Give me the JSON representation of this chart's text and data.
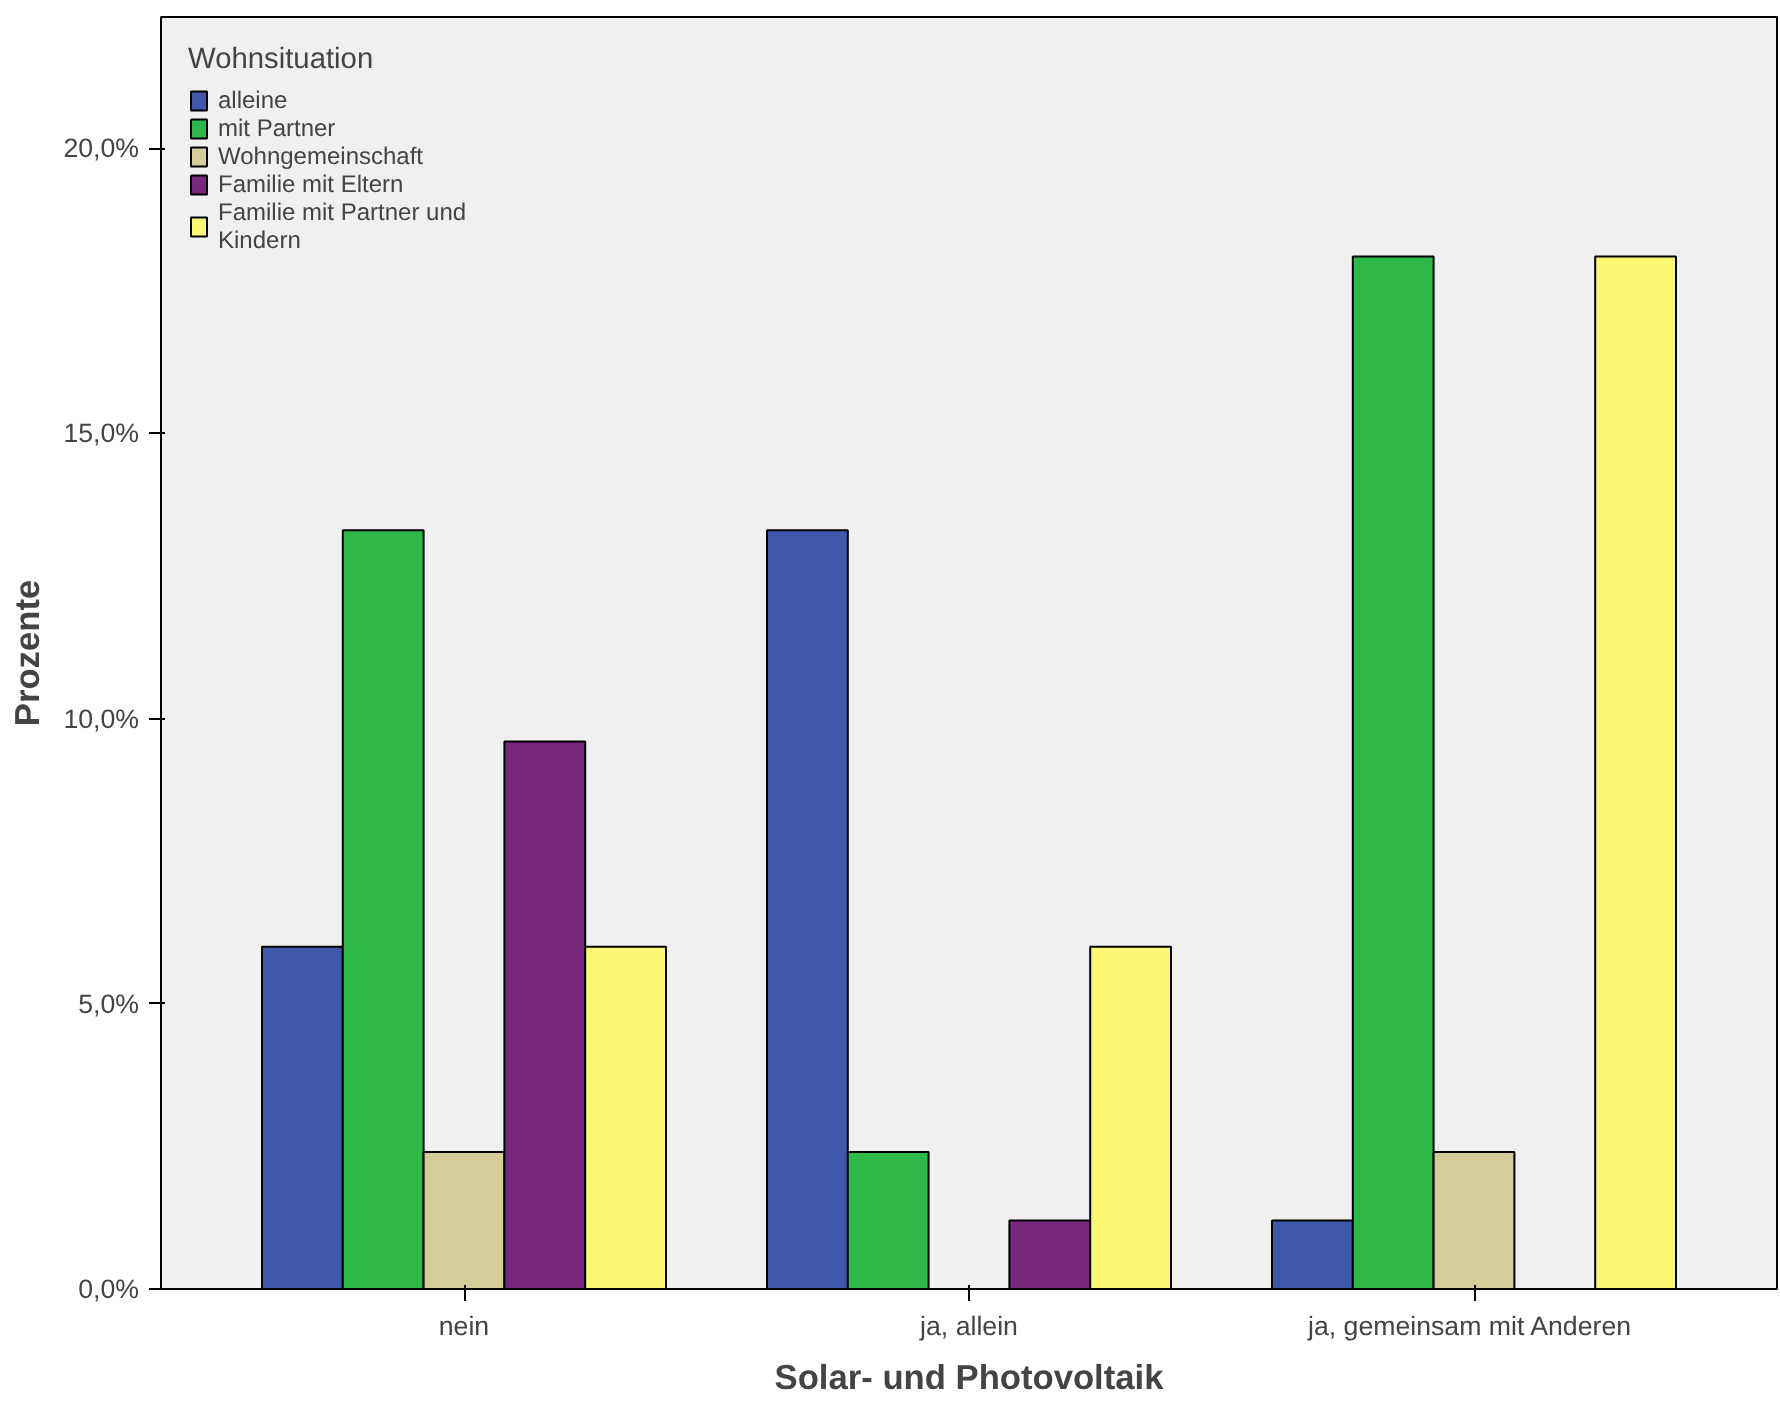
{
  "chart_data": {
    "type": "bar",
    "xlabel": "Solar- und Photovoltaik",
    "ylabel": "Prozente",
    "legend_title": "Wohnsituation",
    "legend": "top left",
    "grid": false,
    "categories": [
      "nein",
      "ja, allein",
      "ja, gemeinsam mit  Anderen"
    ],
    "ylim": [
      0,
      22.3
    ],
    "yticks": [
      {
        "value": 0,
        "label": "0,0%"
      },
      {
        "value": 5,
        "label": "5,0%"
      },
      {
        "value": 10,
        "label": "10,0%"
      },
      {
        "value": 15,
        "label": "15,0%"
      },
      {
        "value": 20,
        "label": "20,0%"
      }
    ],
    "series": [
      {
        "name": "alleine",
        "color": "#3e58ac",
        "values": [
          6.0,
          13.3,
          1.2
        ]
      },
      {
        "name": "mit Partner",
        "color": "#2eb848",
        "values": [
          13.3,
          2.4,
          18.1
        ]
      },
      {
        "name": "Wohngemeinschaft",
        "color": "#d4cc99",
        "values": [
          2.4,
          null,
          2.4
        ]
      },
      {
        "name": "Familie mit Eltern",
        "color": "#78287c",
        "values": [
          9.6,
          1.2,
          null
        ]
      },
      {
        "name": "Familie mit Partner und\nKindern",
        "color": "#fbf873",
        "values": [
          6.0,
          6.0,
          18.1
        ]
      }
    ]
  }
}
